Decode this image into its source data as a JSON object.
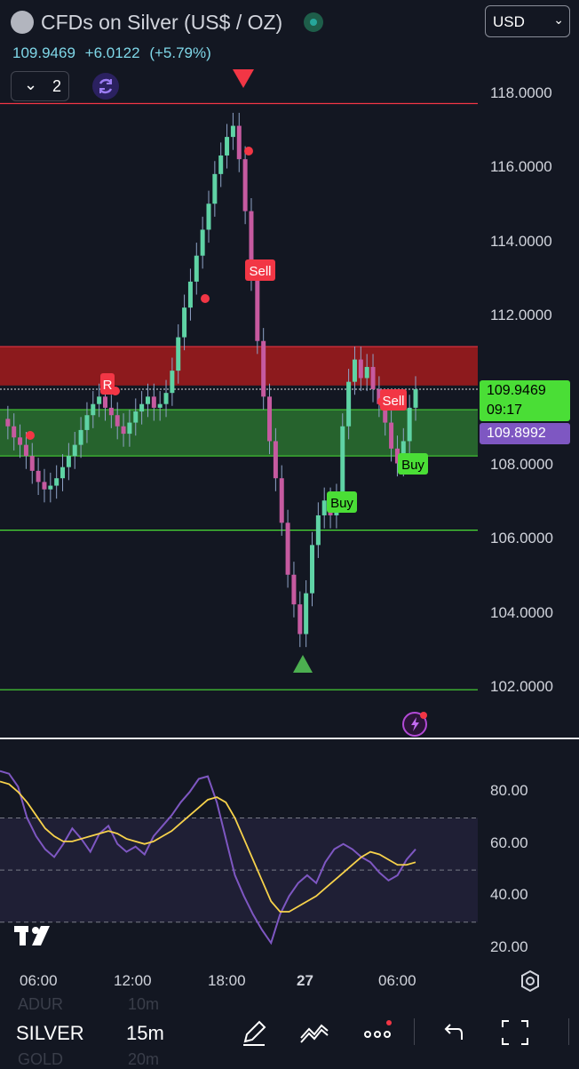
{
  "header": {
    "title": "CFDs on Silver (US$ / OZ)",
    "last_price": "109.9469",
    "change": "+6.0122",
    "change_pct": "(+5.79%)",
    "currency": "USD",
    "indicator_count": "2"
  },
  "price_axis": {
    "ticks": [
      "118.0000",
      "116.0000",
      "114.0000",
      "112.0000",
      "108.0000",
      "106.0000",
      "104.0000",
      "102.0000"
    ],
    "last_price_badge": "109.9469",
    "countdown": "09:17",
    "ma_badge": "109.8992"
  },
  "chart_data": {
    "type": "candlestick",
    "symbol": "SILVER",
    "interval": "15m",
    "x_ticks": [
      "06:00",
      "12:00",
      "18:00",
      "27",
      "06:00"
    ],
    "ylim": [
      101.5,
      118.9
    ],
    "y_ticks": [
      102,
      104,
      106,
      108,
      110,
      112,
      114,
      116,
      118
    ],
    "horizontal_lines": [
      117.7,
      110.0,
      106.2,
      101.9
    ],
    "zones": [
      {
        "name": "supply",
        "from": 110.1,
        "to": 111.15,
        "color": "#b71c1c"
      },
      {
        "name": "demand",
        "from": 108.2,
        "to": 109.45,
        "color": "#2e7d32"
      }
    ],
    "signals": [
      {
        "label": "Sell",
        "near_price": 115.3
      },
      {
        "label": "R",
        "near_price": 110.2
      },
      {
        "label": "Sell",
        "near_price": 109.6
      },
      {
        "label": "Buy",
        "near_price": 106.7
      },
      {
        "label": "Buy",
        "near_price": 107.9
      }
    ],
    "close_series": [
      109.2,
      109.0,
      108.7,
      108.5,
      108.2,
      107.8,
      107.5,
      107.3,
      107.4,
      107.6,
      107.9,
      108.2,
      108.5,
      108.9,
      109.3,
      109.6,
      109.8,
      109.5,
      109.3,
      109.0,
      108.8,
      109.1,
      109.4,
      109.6,
      109.8,
      109.5,
      109.6,
      109.9,
      110.5,
      111.4,
      112.2,
      112.9,
      113.6,
      114.3,
      115.0,
      115.8,
      116.3,
      116.8,
      117.1,
      116.2,
      114.8,
      113.0,
      111.3,
      109.8,
      108.6,
      107.6,
      106.4,
      105.0,
      104.2,
      103.4,
      104.5,
      105.8,
      106.6,
      107.0,
      106.6,
      107.1,
      109.0,
      110.2,
      110.8,
      110.3,
      110.6,
      110.0,
      109.6,
      109.1,
      108.4,
      108.0,
      108.6,
      109.5,
      110.0
    ],
    "rsi": {
      "ticks": [
        "80.00",
        "60.00",
        "40.00",
        "20.00"
      ],
      "levels": [
        70,
        50,
        30
      ],
      "ylim": [
        17,
        92
      ],
      "rsi_values": [
        88,
        87,
        82,
        70,
        63,
        58,
        55,
        60,
        66,
        62,
        57,
        64,
        67,
        60,
        57,
        59,
        56,
        63,
        67,
        71,
        76,
        80,
        85,
        86,
        76,
        62,
        48,
        40,
        33,
        27,
        22,
        33,
        40,
        45,
        48,
        45,
        53,
        58,
        60,
        58,
        55,
        53,
        49,
        46,
        48,
        54,
        58
      ],
      "ma_values": [
        84,
        83,
        80,
        76,
        71,
        66,
        63,
        61,
        61,
        62,
        63,
        64,
        65,
        64,
        62,
        61,
        60,
        61,
        63,
        65,
        68,
        71,
        74,
        77,
        78,
        76,
        70,
        62,
        54,
        46,
        38,
        34,
        34,
        36,
        38,
        40,
        43,
        46,
        49,
        52,
        55,
        57,
        56,
        54,
        52,
        52,
        53
      ]
    }
  },
  "rsi_axis": {
    "ticks": [
      "80.00",
      "60.00",
      "40.00",
      "20.00"
    ]
  },
  "bottom_bar": {
    "symbol": "SILVER",
    "interval": "15m",
    "ghost_top_left": "ADUR",
    "ghost_top_right": "10m",
    "ghost_bottom_left": "GOLD",
    "ghost_bottom_right": "20m"
  },
  "colors": {
    "background": "#131722",
    "bull": "#5fd3a5",
    "bear": "#c65aa0",
    "resistance": "#f23645",
    "support": "#4ade36",
    "rsi_line": "#7e57c2",
    "rsi_ma": "#f7d24b"
  }
}
